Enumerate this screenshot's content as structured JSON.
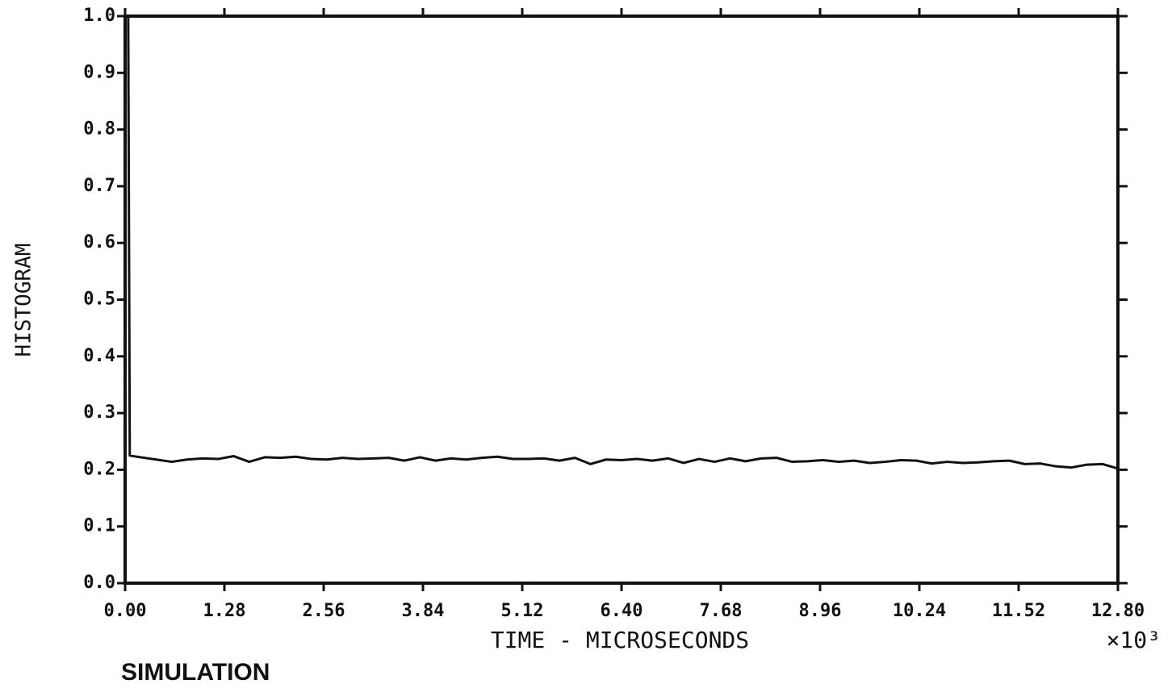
{
  "chart_data": {
    "type": "line",
    "y_label": "HISTOGRAM",
    "x_label": "TIME - MICROSECONDS",
    "x_multiplier": "×10³",
    "caption": "SIMULATION",
    "xlim": [
      0,
      12.8
    ],
    "ylim": [
      0,
      1
    ],
    "xticks": [
      {
        "value": 0,
        "label": "0.00"
      },
      1.28,
      2.56,
      3.84,
      5.12,
      {
        "value": 6.4,
        "label": "6.40"
      },
      7.68,
      8.96,
      10.24,
      11.52,
      {
        "value": 12.8,
        "label": "12.80"
      }
    ],
    "yticks": [
      {
        "value": 0,
        "label": "0.0"
      },
      0.1,
      0.2,
      0.3,
      0.4,
      0.5,
      0.6,
      0.7,
      0.8,
      0.9,
      {
        "value": 1,
        "label": "1.0"
      }
    ],
    "color": "#111111",
    "x": [
      0,
      0.04,
      0.06,
      0.2,
      0.4,
      0.6,
      0.8,
      1.0,
      1.2,
      1.4,
      1.6,
      1.8,
      2.0,
      2.2,
      2.4,
      2.6,
      2.8,
      3.0,
      3.2,
      3.4,
      3.6,
      3.8,
      4.0,
      4.2,
      4.4,
      4.6,
      4.8,
      5.0,
      5.2,
      5.4,
      5.6,
      5.8,
      6.0,
      6.2,
      6.4,
      6.6,
      6.8,
      7.0,
      7.2,
      7.4,
      7.6,
      7.8,
      8.0,
      8.2,
      8.4,
      8.6,
      8.8,
      9.0,
      9.2,
      9.4,
      9.6,
      9.8,
      10.0,
      10.2,
      10.4,
      10.6,
      10.8,
      11.0,
      11.2,
      11.4,
      11.6,
      11.8,
      12.0,
      12.2,
      12.4,
      12.6,
      12.8
    ],
    "values": [
      1.0,
      1.0,
      0.225,
      0.222,
      0.218,
      0.214,
      0.218,
      0.22,
      0.219,
      0.224,
      0.214,
      0.222,
      0.221,
      0.223,
      0.219,
      0.218,
      0.221,
      0.219,
      0.22,
      0.221,
      0.216,
      0.222,
      0.216,
      0.22,
      0.218,
      0.221,
      0.223,
      0.219,
      0.219,
      0.22,
      0.216,
      0.221,
      0.21,
      0.218,
      0.217,
      0.219,
      0.216,
      0.22,
      0.212,
      0.219,
      0.214,
      0.22,
      0.215,
      0.22,
      0.221,
      0.214,
      0.215,
      0.217,
      0.214,
      0.216,
      0.212,
      0.214,
      0.217,
      0.216,
      0.211,
      0.214,
      0.212,
      0.213,
      0.215,
      0.216,
      0.21,
      0.211,
      0.206,
      0.204,
      0.209,
      0.21,
      0.202
    ]
  }
}
